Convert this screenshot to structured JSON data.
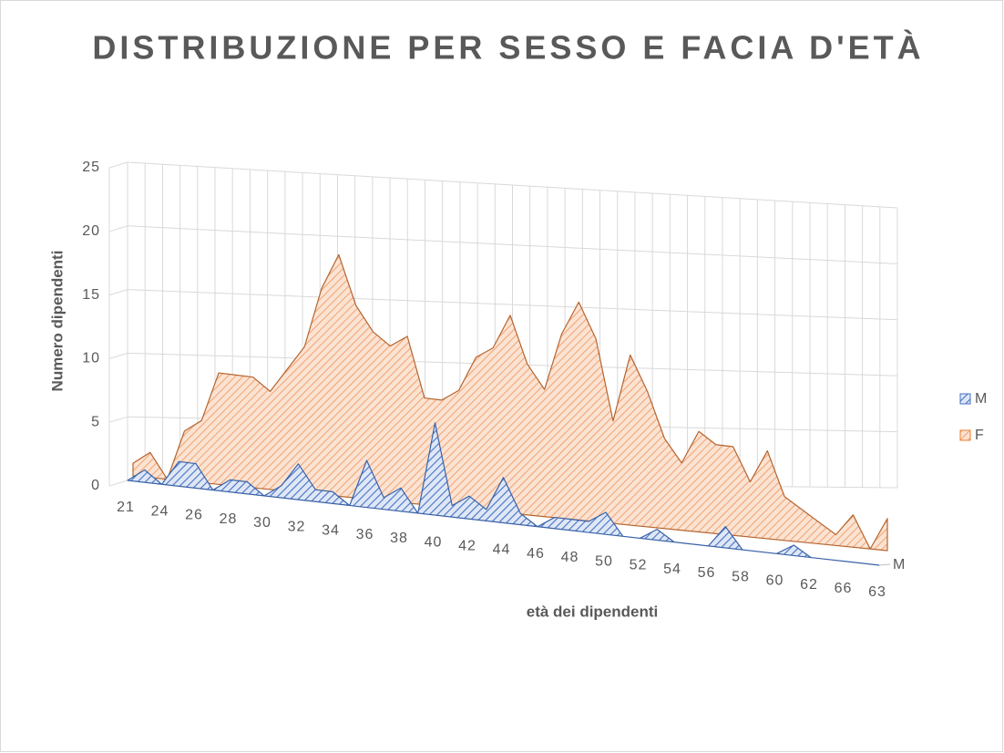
{
  "chart_data": {
    "type": "area3d",
    "title": "DISTRIBUZIONE PER SESSO E FACIA D'ETÀ",
    "x_label": "età dei dipendenti",
    "y_label": "Numero dipendenti",
    "categories": [
      "21",
      null,
      "24",
      null,
      "26",
      null,
      "28",
      null,
      "30",
      null,
      "32",
      null,
      "34",
      null,
      "36",
      null,
      "38",
      null,
      "40",
      null,
      "42",
      null,
      "44",
      null,
      "46",
      null,
      "48",
      null,
      "50",
      null,
      "52",
      null,
      "54",
      null,
      "56",
      null,
      "58",
      null,
      "60",
      null,
      "62",
      null,
      "66",
      null,
      "63"
    ],
    "series": [
      {
        "name": "M",
        "color": "#4472c4",
        "values": [
          0,
          1,
          0,
          2,
          2,
          0,
          1,
          1,
          0,
          1,
          3,
          1,
          1,
          0,
          4,
          1,
          2,
          0,
          8,
          1,
          2,
          1,
          4,
          1,
          0,
          1,
          1,
          1,
          2,
          0,
          0,
          1,
          0,
          0,
          0,
          2,
          0,
          0,
          0,
          1,
          0,
          0,
          0,
          0,
          0
        ]
      },
      {
        "name": "F",
        "color": "#ed7d31",
        "values": [
          1,
          2,
          0,
          4,
          5,
          9,
          9,
          9,
          8,
          10,
          12,
          17,
          20,
          16,
          14,
          13,
          14,
          9,
          9,
          10,
          13,
          14,
          17,
          13,
          11,
          16,
          19,
          16,
          9,
          15,
          12,
          8,
          6,
          9,
          8,
          8,
          5,
          8,
          4,
          3,
          2,
          1,
          3,
          0,
          3
        ]
      }
    ],
    "ylim": [
      0,
      25
    ],
    "yticks": [
      0,
      5,
      10,
      15,
      20,
      25
    ],
    "grid": true,
    "legend": "right"
  }
}
